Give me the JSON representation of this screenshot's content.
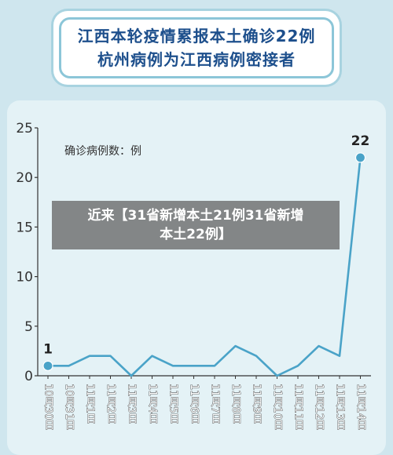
{
  "header": {
    "title_line1": "江西本轮疫情累报本土确诊22例",
    "title_line2": "杭州病例为江西病例密接者"
  },
  "banner": {
    "line1": "近来【31省新增本土21例31省新增",
    "line2": "本土22例】"
  },
  "chart_data": {
    "type": "line",
    "title": "",
    "ylabel": "确诊病例数：例",
    "xlabel": "",
    "categories": [
      "10月30日",
      "10月31日",
      "11月1日",
      "11月2日",
      "11月3日",
      "11月4日",
      "11月5日",
      "11月6日",
      "11月7日",
      "11月8日",
      "11月9日",
      "11月10日",
      "11月11日",
      "11月12日",
      "11月13日",
      "11月14日"
    ],
    "values": [
      1,
      1,
      2,
      2,
      0,
      2,
      1,
      1,
      1,
      3,
      2,
      0,
      1,
      3,
      2,
      22
    ],
    "ylim": [
      0,
      25
    ],
    "yticks": [
      0,
      5,
      10,
      15,
      20,
      25
    ],
    "point_labels": [
      {
        "index": 0,
        "text": "1"
      },
      {
        "index": 15,
        "text": "22"
      }
    ],
    "line_color": "#4aa3c8",
    "grid": false,
    "legend": "none"
  }
}
